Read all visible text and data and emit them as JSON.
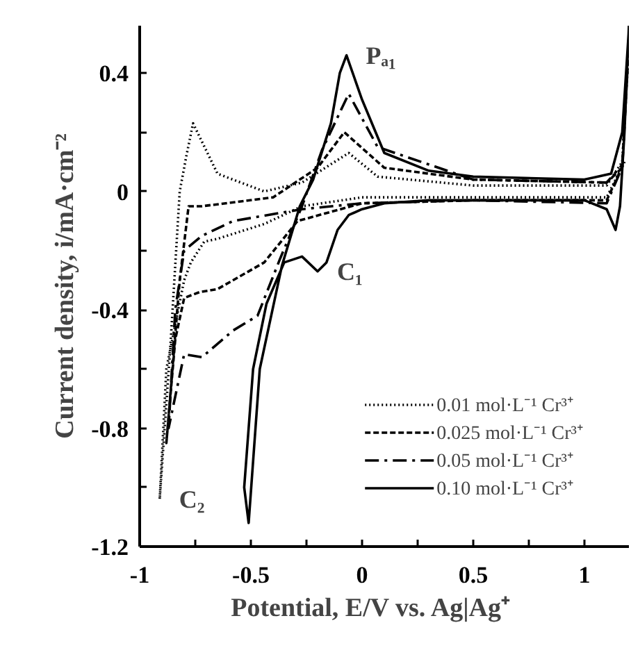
{
  "chart_data": {
    "type": "line",
    "xlabel": "Potential, E/V   vs.   Ag|Ag⁺",
    "ylabel": "Current density, i/mA·cm⁻²",
    "xlim": [
      -1,
      1.2
    ],
    "ylim": [
      -1.2,
      0.56
    ],
    "xticks": [
      -1,
      {
        "value": -0.75,
        "label": null
      },
      -0.5,
      {
        "value": -0.25,
        "label": null
      },
      0,
      {
        "value": 0.25,
        "label": null
      },
      0.5,
      {
        "value": 0.75,
        "label": null
      },
      1
    ],
    "yticks": [
      -1.2,
      {
        "value": -1.0,
        "label": null
      },
      -0.8,
      {
        "value": -0.6,
        "label": null
      },
      -0.4,
      {
        "value": -0.2,
        "label": null
      },
      0,
      {
        "value": 0.2,
        "label": null
      },
      0.4
    ],
    "grid": false,
    "legend": "bottom right",
    "annotations": [
      {
        "text": "Pₐ₁",
        "x": -0.07,
        "y": 0.46
      },
      {
        "text": "C₁",
        "x": -0.2,
        "y": -0.27
      },
      {
        "text": "C₂",
        "x": -0.91,
        "y": -1.04
      }
    ],
    "series": [
      {
        "name": "0.01 mol·L⁻¹ Cr³⁺",
        "color": "#000000",
        "line_style": "dotted",
        "x": [
          1.2,
          1.17,
          1.1,
          0.5,
          0.07,
          -0.06,
          -0.27,
          -0.44,
          -0.65,
          -0.76,
          -0.79,
          -0.82,
          -0.86,
          -0.91,
          -0.88,
          -0.8,
          -0.77,
          -0.71,
          -0.65,
          -0.44,
          -0.27,
          0.0,
          0.5,
          1.1,
          1.18
        ],
        "values": [
          0.5,
          0.1,
          0.02,
          0.02,
          0.05,
          0.13,
          0.03,
          0.0,
          0.06,
          0.23,
          0.12,
          0.0,
          -0.5,
          -1.04,
          -0.6,
          -0.3,
          -0.24,
          -0.17,
          -0.16,
          -0.11,
          -0.05,
          -0.02,
          -0.02,
          -0.02,
          0.1
        ]
      },
      {
        "name": "0.025 mol·L⁻¹ Cr³⁺",
        "color": "#000000",
        "line_style": "dashed",
        "x": [
          1.2,
          1.17,
          1.1,
          0.5,
          0.1,
          -0.08,
          -0.2,
          -0.4,
          -0.72,
          -0.78,
          -0.82,
          -0.88,
          -0.84,
          -0.8,
          -0.73,
          -0.65,
          -0.44,
          -0.29,
          0.0,
          0.5,
          1.1,
          1.18
        ],
        "values": [
          0.5,
          0.08,
          0.03,
          0.04,
          0.08,
          0.2,
          0.08,
          -0.02,
          -0.05,
          -0.05,
          -0.3,
          -0.85,
          -0.5,
          -0.36,
          -0.34,
          -0.33,
          -0.24,
          -0.1,
          -0.04,
          -0.03,
          -0.03,
          0.1
        ]
      },
      {
        "name": "0.05 mol·L⁻¹ Cr³⁺",
        "color": "#000000",
        "line_style": "dashdot",
        "x": [
          1.2,
          1.17,
          1.1,
          0.5,
          0.07,
          -0.06,
          -0.18,
          -0.27,
          -0.37,
          -0.47,
          -0.58,
          -0.72,
          -0.8,
          -0.87,
          -0.84,
          -0.8,
          -0.72,
          -0.58,
          -0.27,
          0.0,
          0.5,
          1.1,
          1.18
        ],
        "values": [
          0.5,
          0.09,
          0.03,
          0.04,
          0.15,
          0.33,
          0.14,
          -0.05,
          -0.23,
          -0.42,
          -0.47,
          -0.56,
          -0.55,
          -0.8,
          -0.4,
          -0.2,
          -0.15,
          -0.1,
          -0.06,
          -0.04,
          -0.03,
          -0.04,
          0.1
        ]
      },
      {
        "name": "0.10 mol·L⁻¹ Cr³⁺",
        "color": "#000000",
        "line_style": "solid",
        "x": [
          1.2,
          1.17,
          1.12,
          1.0,
          0.5,
          0.3,
          0.1,
          0.0,
          -0.07,
          -0.1,
          -0.14,
          -0.22,
          -0.28,
          -0.36,
          -0.46,
          -0.51,
          -0.53,
          -0.49,
          -0.43,
          -0.35,
          -0.27,
          -0.2,
          -0.16,
          -0.11,
          -0.06,
          0.0,
          0.1,
          0.3,
          1.0,
          1.1,
          1.14,
          1.16,
          1.18,
          1.2
        ],
        "values": [
          0.55,
          0.2,
          0.06,
          0.04,
          0.05,
          0.07,
          0.13,
          0.31,
          0.46,
          0.4,
          0.23,
          0.04,
          -0.05,
          -0.25,
          -0.6,
          -1.12,
          -1.0,
          -0.6,
          -0.38,
          -0.24,
          -0.22,
          -0.27,
          -0.24,
          -0.13,
          -0.08,
          -0.06,
          -0.04,
          -0.03,
          -0.03,
          -0.06,
          -0.13,
          -0.05,
          0.2,
          0.56
        ]
      }
    ]
  }
}
